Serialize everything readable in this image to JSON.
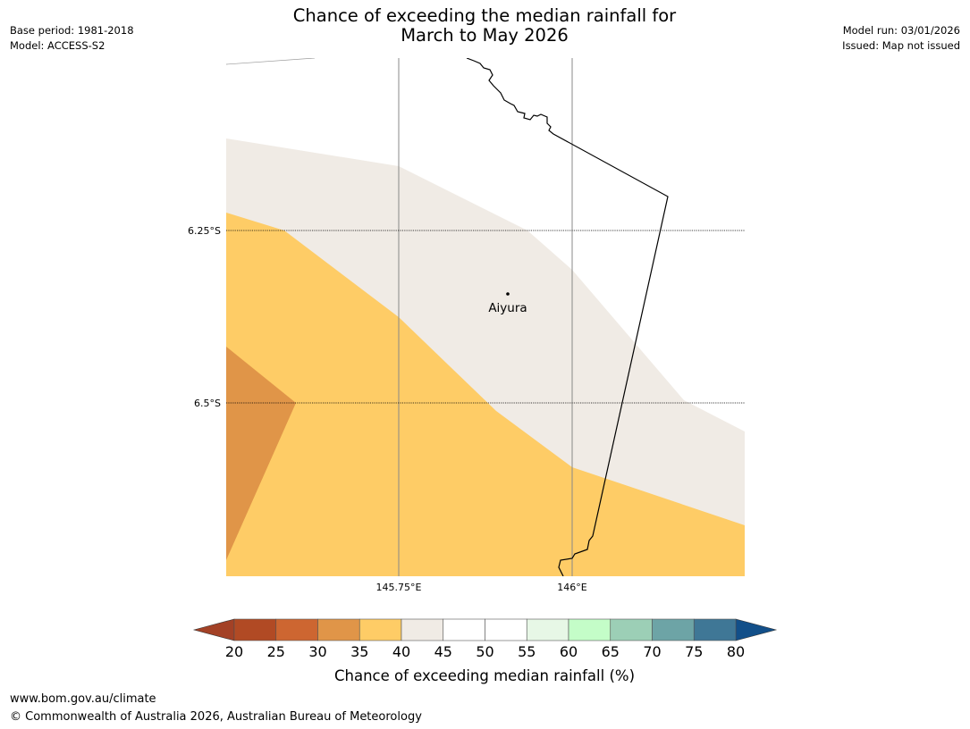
{
  "title": {
    "line1": "Chance of exceeding the median rainfall for",
    "line2": "March to May 2026"
  },
  "meta_left": {
    "base_period": "Base period: 1981-2018",
    "model": "Model: ACCESS-S2"
  },
  "meta_right": {
    "model_run": "Model run: 03/01/2026",
    "issued": "Issued: Map not issued"
  },
  "map": {
    "lat_labels": [
      "6.25°S",
      "6.5°S"
    ],
    "lon_labels": [
      "145.75°E",
      "146°E"
    ],
    "town": {
      "name": "Aiyura",
      "lat": -6.34,
      "lon": 145.9
    },
    "zone_colors": {
      "below_45": "#f0ebe5",
      "below_40": "#fecc66",
      "below_35": "#e09548"
    }
  },
  "colorbar": {
    "ticks": [
      "20",
      "25",
      "30",
      "35",
      "40",
      "45",
      "50",
      "55",
      "60",
      "65",
      "70",
      "75",
      "80"
    ],
    "colors": [
      "#a34126",
      "#b14a24",
      "#cd6631",
      "#e09548",
      "#fecc66",
      "#f0ebe5",
      "#ffffff",
      "#ffffff",
      "#e7f7e6",
      "#c4fdc8",
      "#9ccfb6",
      "#6da4a6",
      "#3f7796",
      "#124f89"
    ],
    "label": "Chance of exceeding median rainfall (%)"
  },
  "footer": {
    "url": "www.bom.gov.au/climate",
    "copyright": "© Commonwealth of Australia 2026, Australian Bureau of Meteorology"
  }
}
